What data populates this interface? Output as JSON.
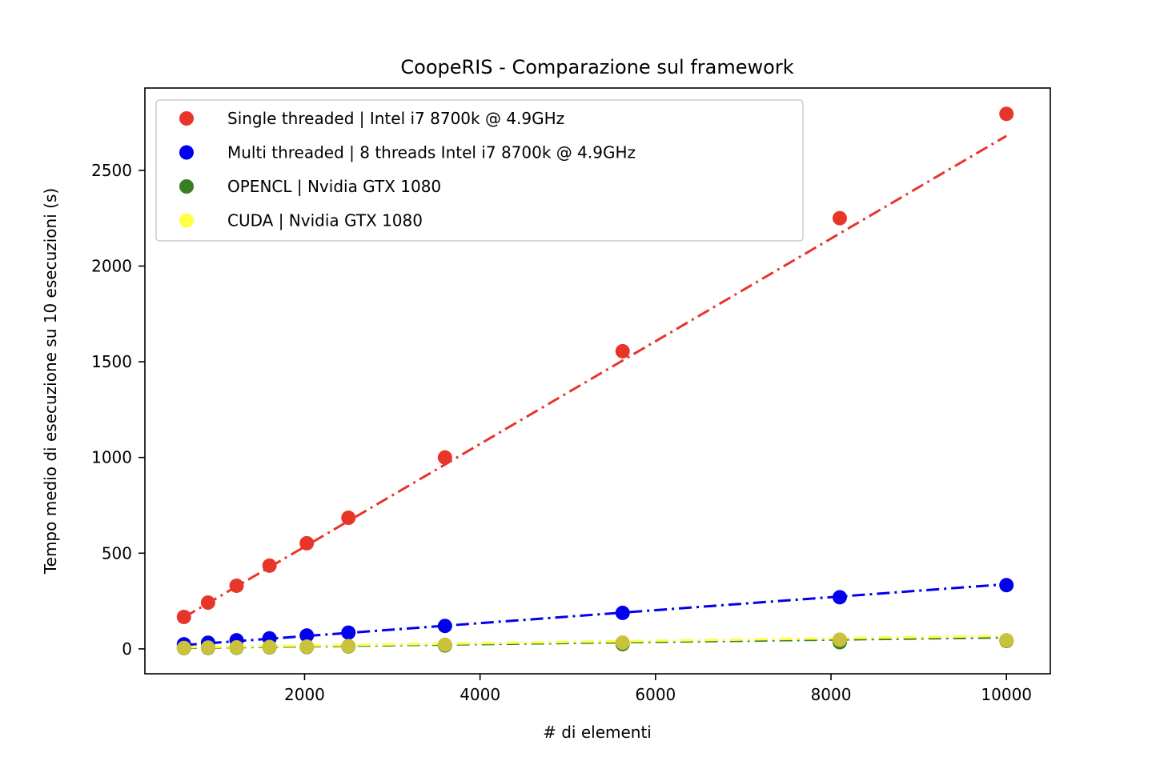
{
  "chart_data": {
    "type": "scatter",
    "title": "CoopeRIS - Comparazione sul framework",
    "xlabel": "# di elementi",
    "ylabel": "Tempo medio di esecuzione su 10 esecuzioni (s)",
    "xlim": [
      180,
      10500
    ],
    "ylim": [
      -130,
      2930
    ],
    "xticks": [
      2000,
      4000,
      6000,
      8000,
      10000
    ],
    "yticks": [
      0,
      500,
      1000,
      1500,
      2000,
      2500
    ],
    "grid": false,
    "legend_position": "top-left",
    "x": [
      625,
      900,
      1225,
      1600,
      2025,
      2500,
      3600,
      5625,
      8100,
      10000
    ],
    "series": [
      {
        "name": "Single threaded | Intel i7 8700k @ 4.9GHz",
        "color": "#e8352a",
        "values": [
          167,
          242,
          330,
          435,
          552,
          685,
          1000,
          1555,
          2250,
          2795
        ],
        "fit_start": [
          625,
          165
        ],
        "fit_end": [
          10000,
          2680
        ]
      },
      {
        "name": "Multi threaded | 8 threads Intel i7 8700k @ 4.9GHz",
        "color": "#0000ee",
        "values": [
          24,
          32,
          45,
          55,
          70,
          85,
          120,
          188,
          270,
          333
        ],
        "fit_start": [
          625,
          20
        ],
        "fit_end": [
          10000,
          338
        ]
      },
      {
        "name": "OPENCL | Nvidia GTX 1080",
        "color": "#3a7d22",
        "values": [
          4,
          5,
          6,
          8,
          10,
          13,
          18,
          25,
          35,
          42
        ],
        "fit_start": [
          625,
          5
        ],
        "fit_end": [
          10000,
          60
        ]
      },
      {
        "name": "CUDA | Nvidia GTX 1080",
        "color": "#ffff44",
        "point_color": "#c9c23a",
        "values": [
          5,
          7,
          8,
          10,
          12,
          15,
          22,
          33,
          48,
          45
        ],
        "fit_start": [
          625,
          8
        ],
        "fit_end": [
          10000,
          68
        ]
      }
    ]
  }
}
